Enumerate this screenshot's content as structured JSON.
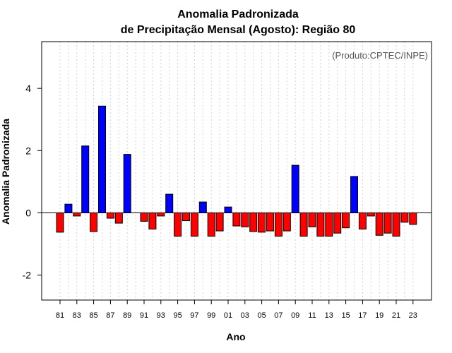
{
  "chart_data": {
    "type": "bar",
    "title": "Anomalia Padronizada",
    "subtitle": "de Precipitação Mensal (Agosto): Região 80",
    "xlabel": "Ano",
    "ylabel": "Anomalia Padronizada",
    "annotation": "(Produto:CPTEC/INPE)",
    "ylim": [
      -2.8,
      5.5
    ],
    "yticks": [
      -2,
      0,
      2,
      4
    ],
    "grid": "vertical-dotted",
    "categories": [
      "81",
      "82",
      "83",
      "84",
      "85",
      "86",
      "87",
      "88",
      "89",
      "90",
      "91",
      "92",
      "93",
      "94",
      "95",
      "96",
      "97",
      "98",
      "99",
      "00",
      "01",
      "02",
      "03",
      "04",
      "05",
      "06",
      "07",
      "08",
      "09",
      "10",
      "11",
      "12",
      "13",
      "14",
      "15",
      "16",
      "17",
      "18",
      "19",
      "20",
      "21",
      "22",
      "23"
    ],
    "xtick_labels": [
      "81",
      "83",
      "85",
      "87",
      "89",
      "91",
      "93",
      "95",
      "97",
      "99",
      "01",
      "03",
      "05",
      "07",
      "09",
      "11",
      "13",
      "15",
      "17",
      "19",
      "21",
      "23"
    ],
    "values": [
      -0.62,
      0.28,
      -0.1,
      2.15,
      -0.6,
      3.43,
      -0.17,
      -0.33,
      1.88,
      0.0,
      -0.27,
      -0.52,
      -0.1,
      0.6,
      -0.75,
      -0.25,
      -0.75,
      0.35,
      -0.75,
      -0.58,
      0.19,
      -0.42,
      -0.45,
      -0.6,
      -0.62,
      -0.58,
      -0.75,
      -0.58,
      1.53,
      -0.75,
      -0.45,
      -0.75,
      -0.75,
      -0.65,
      -0.48,
      1.17,
      -0.52,
      -0.1,
      -0.72,
      -0.65,
      -0.75,
      -0.3,
      -0.37
    ],
    "colors": {
      "positive": "#0000ff",
      "negative": "#ff0000",
      "outline": "#000000",
      "grid": "#d3d3d3"
    }
  }
}
